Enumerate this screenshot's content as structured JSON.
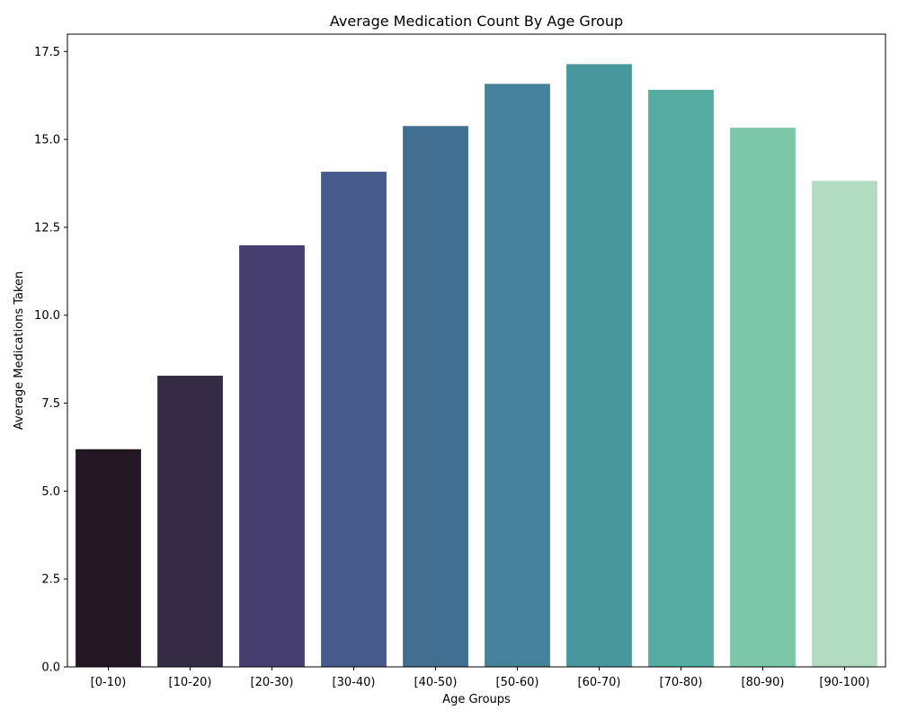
{
  "chart_data": {
    "type": "bar",
    "title": "Average Medication Count By Age Group",
    "xlabel": "Age Groups",
    "ylabel": "Average Medications Taken",
    "categories": [
      "[0-10)",
      "[10-20)",
      "[20-30)",
      "[30-40)",
      "[40-50)",
      "[50-60)",
      "[60-70)",
      "[70-80)",
      "[80-90)",
      "[90-100)"
    ],
    "values": [
      6.19,
      8.28,
      11.99,
      14.08,
      15.38,
      16.58,
      17.14,
      16.41,
      15.33,
      13.82
    ],
    "colors": [
      "#221722",
      "#342b45",
      "#463e6f",
      "#465a8c",
      "#426e92",
      "#45829a",
      "#48979c",
      "#54ada0",
      "#7bc7a8",
      "#b2dcc2"
    ],
    "ylim": [
      0,
      17.993
    ],
    "yticks": [
      "0.0",
      "2.5",
      "5.0",
      "7.5",
      "10.0",
      "12.5",
      "15.0",
      "17.5"
    ],
    "ytick_values": [
      0,
      2.5,
      5,
      7.5,
      10,
      12.5,
      15,
      17.5
    ],
    "grid": false,
    "legend": "none"
  }
}
